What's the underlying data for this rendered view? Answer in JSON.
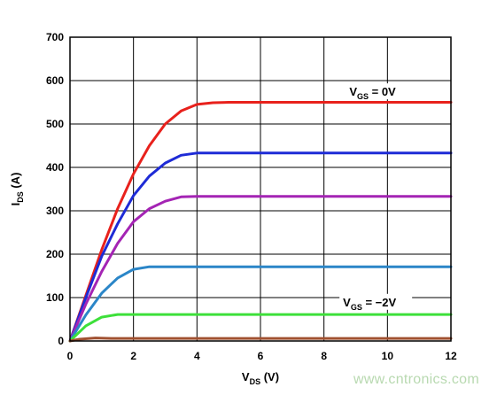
{
  "chart_data": {
    "type": "line",
    "xlabel": {
      "main": "V",
      "sub": "DS",
      "unit": " (V)"
    },
    "ylabel": {
      "main": "I",
      "sub": "DS",
      "unit": " (A)"
    },
    "xlim": [
      0,
      12
    ],
    "ylim": [
      0,
      700
    ],
    "xticks": [
      0,
      2,
      4,
      6,
      8,
      10,
      12
    ],
    "yticks": [
      0,
      100,
      200,
      300,
      400,
      500,
      600,
      700
    ],
    "grid": true,
    "annotations": [
      {
        "main": "V",
        "sub": "GS",
        "text": " = 0V",
        "at": [
          8.8,
          565
        ]
      },
      {
        "main": "V",
        "sub": "GS",
        "text": " = −2V",
        "at": [
          8.6,
          80
        ]
      }
    ],
    "series": [
      {
        "color": "#e8211c",
        "points": [
          [
            0,
            0
          ],
          [
            0.5,
            105
          ],
          [
            1,
            210
          ],
          [
            1.5,
            305
          ],
          [
            2,
            385
          ],
          [
            2.5,
            450
          ],
          [
            3,
            500
          ],
          [
            3.5,
            530
          ],
          [
            4,
            545
          ],
          [
            4.5,
            549
          ],
          [
            5,
            550
          ],
          [
            12,
            550
          ]
        ]
      },
      {
        "color": "#1e2bd6",
        "points": [
          [
            0,
            0
          ],
          [
            0.5,
            100
          ],
          [
            1,
            195
          ],
          [
            1.5,
            270
          ],
          [
            2,
            335
          ],
          [
            2.5,
            380
          ],
          [
            3,
            410
          ],
          [
            3.5,
            428
          ],
          [
            4,
            433
          ],
          [
            12,
            433
          ]
        ]
      },
      {
        "color": "#a424b4",
        "points": [
          [
            0,
            0
          ],
          [
            0.5,
            85
          ],
          [
            1,
            160
          ],
          [
            1.5,
            225
          ],
          [
            2,
            275
          ],
          [
            2.5,
            305
          ],
          [
            3,
            322
          ],
          [
            3.5,
            332
          ],
          [
            4,
            333
          ],
          [
            12,
            333
          ]
        ]
      },
      {
        "color": "#2b86c8",
        "points": [
          [
            0,
            0
          ],
          [
            0.5,
            60
          ],
          [
            1,
            110
          ],
          [
            1.5,
            145
          ],
          [
            2,
            165
          ],
          [
            2.5,
            171
          ],
          [
            3,
            171
          ],
          [
            12,
            171
          ]
        ]
      },
      {
        "color": "#3de03a",
        "points": [
          [
            0,
            0
          ],
          [
            0.5,
            35
          ],
          [
            1,
            55
          ],
          [
            1.5,
            61
          ],
          [
            2,
            61
          ],
          [
            12,
            61
          ]
        ]
      },
      {
        "color": "#a05030",
        "points": [
          [
            0,
            0
          ],
          [
            0.3,
            4
          ],
          [
            0.8,
            7
          ],
          [
            1.3,
            6
          ],
          [
            12,
            6
          ]
        ]
      }
    ]
  },
  "watermark": "www.cntronics.com"
}
